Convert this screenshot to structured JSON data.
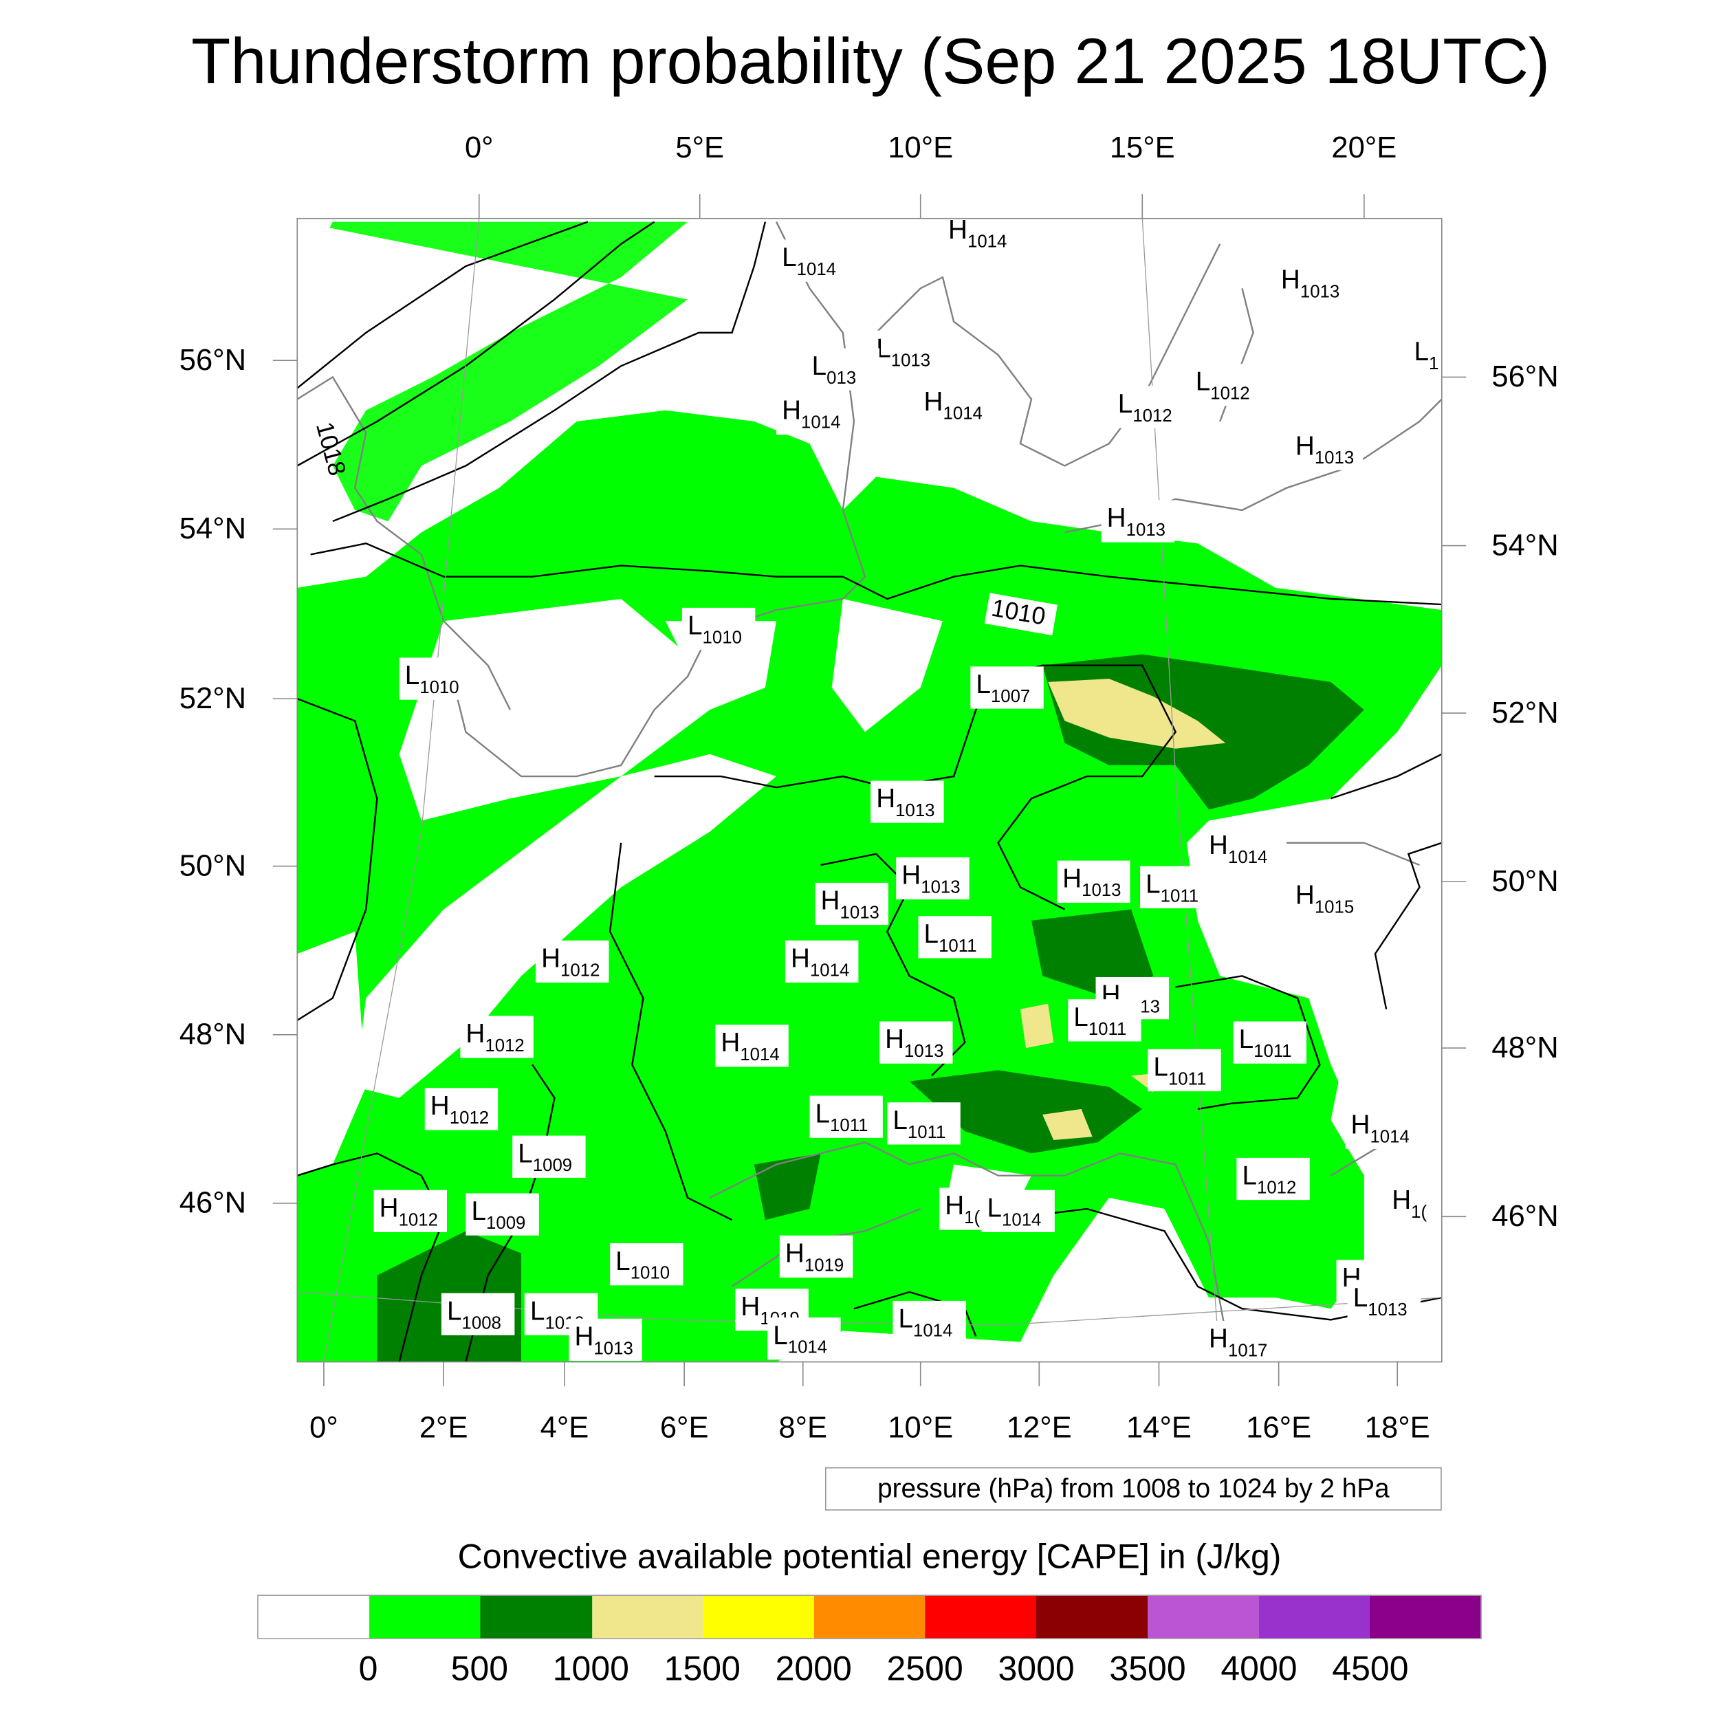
{
  "title": "Thunderstorm probability (Sep 21 2025 18UTC)",
  "axes": {
    "top_lon_ticks": [
      "0°",
      "5°E",
      "10°E",
      "15°E",
      "20°E"
    ],
    "bottom_lon_ticks": [
      "0°",
      "2°E",
      "4°E",
      "6°E",
      "8°E",
      "10°E",
      "12°E",
      "14°E",
      "16°E",
      "18°E"
    ],
    "left_lat_ticks": [
      "56°N",
      "54°N",
      "52°N",
      "50°N",
      "48°N",
      "46°N"
    ],
    "right_lat_ticks": [
      "56°N",
      "54°N",
      "52°N",
      "50°N",
      "48°N",
      "46°N"
    ]
  },
  "contour_legend": "pressure (hPa) from 1008 to 1024 by 2 hPa",
  "contour_labels": [
    "1018",
    "1010"
  ],
  "pressure_centers": [
    {
      "type": "L",
      "value": "1014"
    },
    {
      "type": "H",
      "value": "1014"
    },
    {
      "type": "H",
      "value": "1013"
    },
    {
      "type": "L",
      "value": "1"
    },
    {
      "type": "L",
      "value": "1013"
    },
    {
      "type": "L",
      "value": "013"
    },
    {
      "type": "H",
      "value": "1014"
    },
    {
      "type": "H",
      "value": "1014"
    },
    {
      "type": "L",
      "value": "1012"
    },
    {
      "type": "L",
      "value": "1012"
    },
    {
      "type": "H",
      "value": "1013"
    },
    {
      "type": "H",
      "value": "1013"
    },
    {
      "type": "L",
      "value": "1010"
    },
    {
      "type": "L",
      "value": "1010"
    },
    {
      "type": "L",
      "value": "1007"
    },
    {
      "type": "H",
      "value": "1013"
    },
    {
      "type": "H",
      "value": "1014"
    },
    {
      "type": "H",
      "value": "1015"
    },
    {
      "type": "H",
      "value": "1013"
    },
    {
      "type": "H",
      "value": "1013"
    },
    {
      "type": "L",
      "value": "1011"
    },
    {
      "type": "H",
      "value": "1013"
    },
    {
      "type": "L",
      "value": "1011"
    },
    {
      "type": "H",
      "value": "1012"
    },
    {
      "type": "H",
      "value": "1014"
    },
    {
      "type": "H",
      "value": "1013"
    },
    {
      "type": "L",
      "value": "1011"
    },
    {
      "type": "H",
      "value": "1012"
    },
    {
      "type": "H",
      "value": "1014"
    },
    {
      "type": "H",
      "value": "1013"
    },
    {
      "type": "L",
      "value": "1011"
    },
    {
      "type": "L",
      "value": "1011"
    },
    {
      "type": "H",
      "value": "1012"
    },
    {
      "type": "L",
      "value": "1011"
    },
    {
      "type": "L",
      "value": "1011"
    },
    {
      "type": "H",
      "value": "1014"
    },
    {
      "type": "L",
      "value": "1009"
    },
    {
      "type": "L",
      "value": "1012"
    },
    {
      "type": "H",
      "value": "1012"
    },
    {
      "type": "L",
      "value": "1009"
    },
    {
      "type": "H",
      "value": "1("
    },
    {
      "type": "L",
      "value": "1014"
    },
    {
      "type": "H",
      "value": "1("
    },
    {
      "type": "H",
      "value": "1019"
    },
    {
      "type": "L",
      "value": "1010"
    },
    {
      "type": "H",
      "value": "1015"
    },
    {
      "type": "L",
      "value": "1013"
    },
    {
      "type": "L",
      "value": "1008"
    },
    {
      "type": "L",
      "value": "1010"
    },
    {
      "type": "H",
      "value": "1019"
    },
    {
      "type": "L",
      "value": "1014"
    },
    {
      "type": "H",
      "value": "1013"
    },
    {
      "type": "L",
      "value": "1014"
    },
    {
      "type": "H",
      "value": "1017"
    }
  ],
  "colorbar": {
    "title": "Convective available potential energy [CAPE] in (J/kg)",
    "labels": [
      "0",
      "500",
      "1000",
      "1500",
      "2000",
      "2500",
      "3000",
      "3500",
      "4000",
      "4500"
    ],
    "colors": [
      "#ffffff",
      "#00ff00",
      "#008000",
      "#f0e68c",
      "#ffff00",
      "#ff8c00",
      "#ff0000",
      "#8b0000",
      "#ba55d3",
      "#9932cc",
      "#8b008b"
    ]
  }
}
